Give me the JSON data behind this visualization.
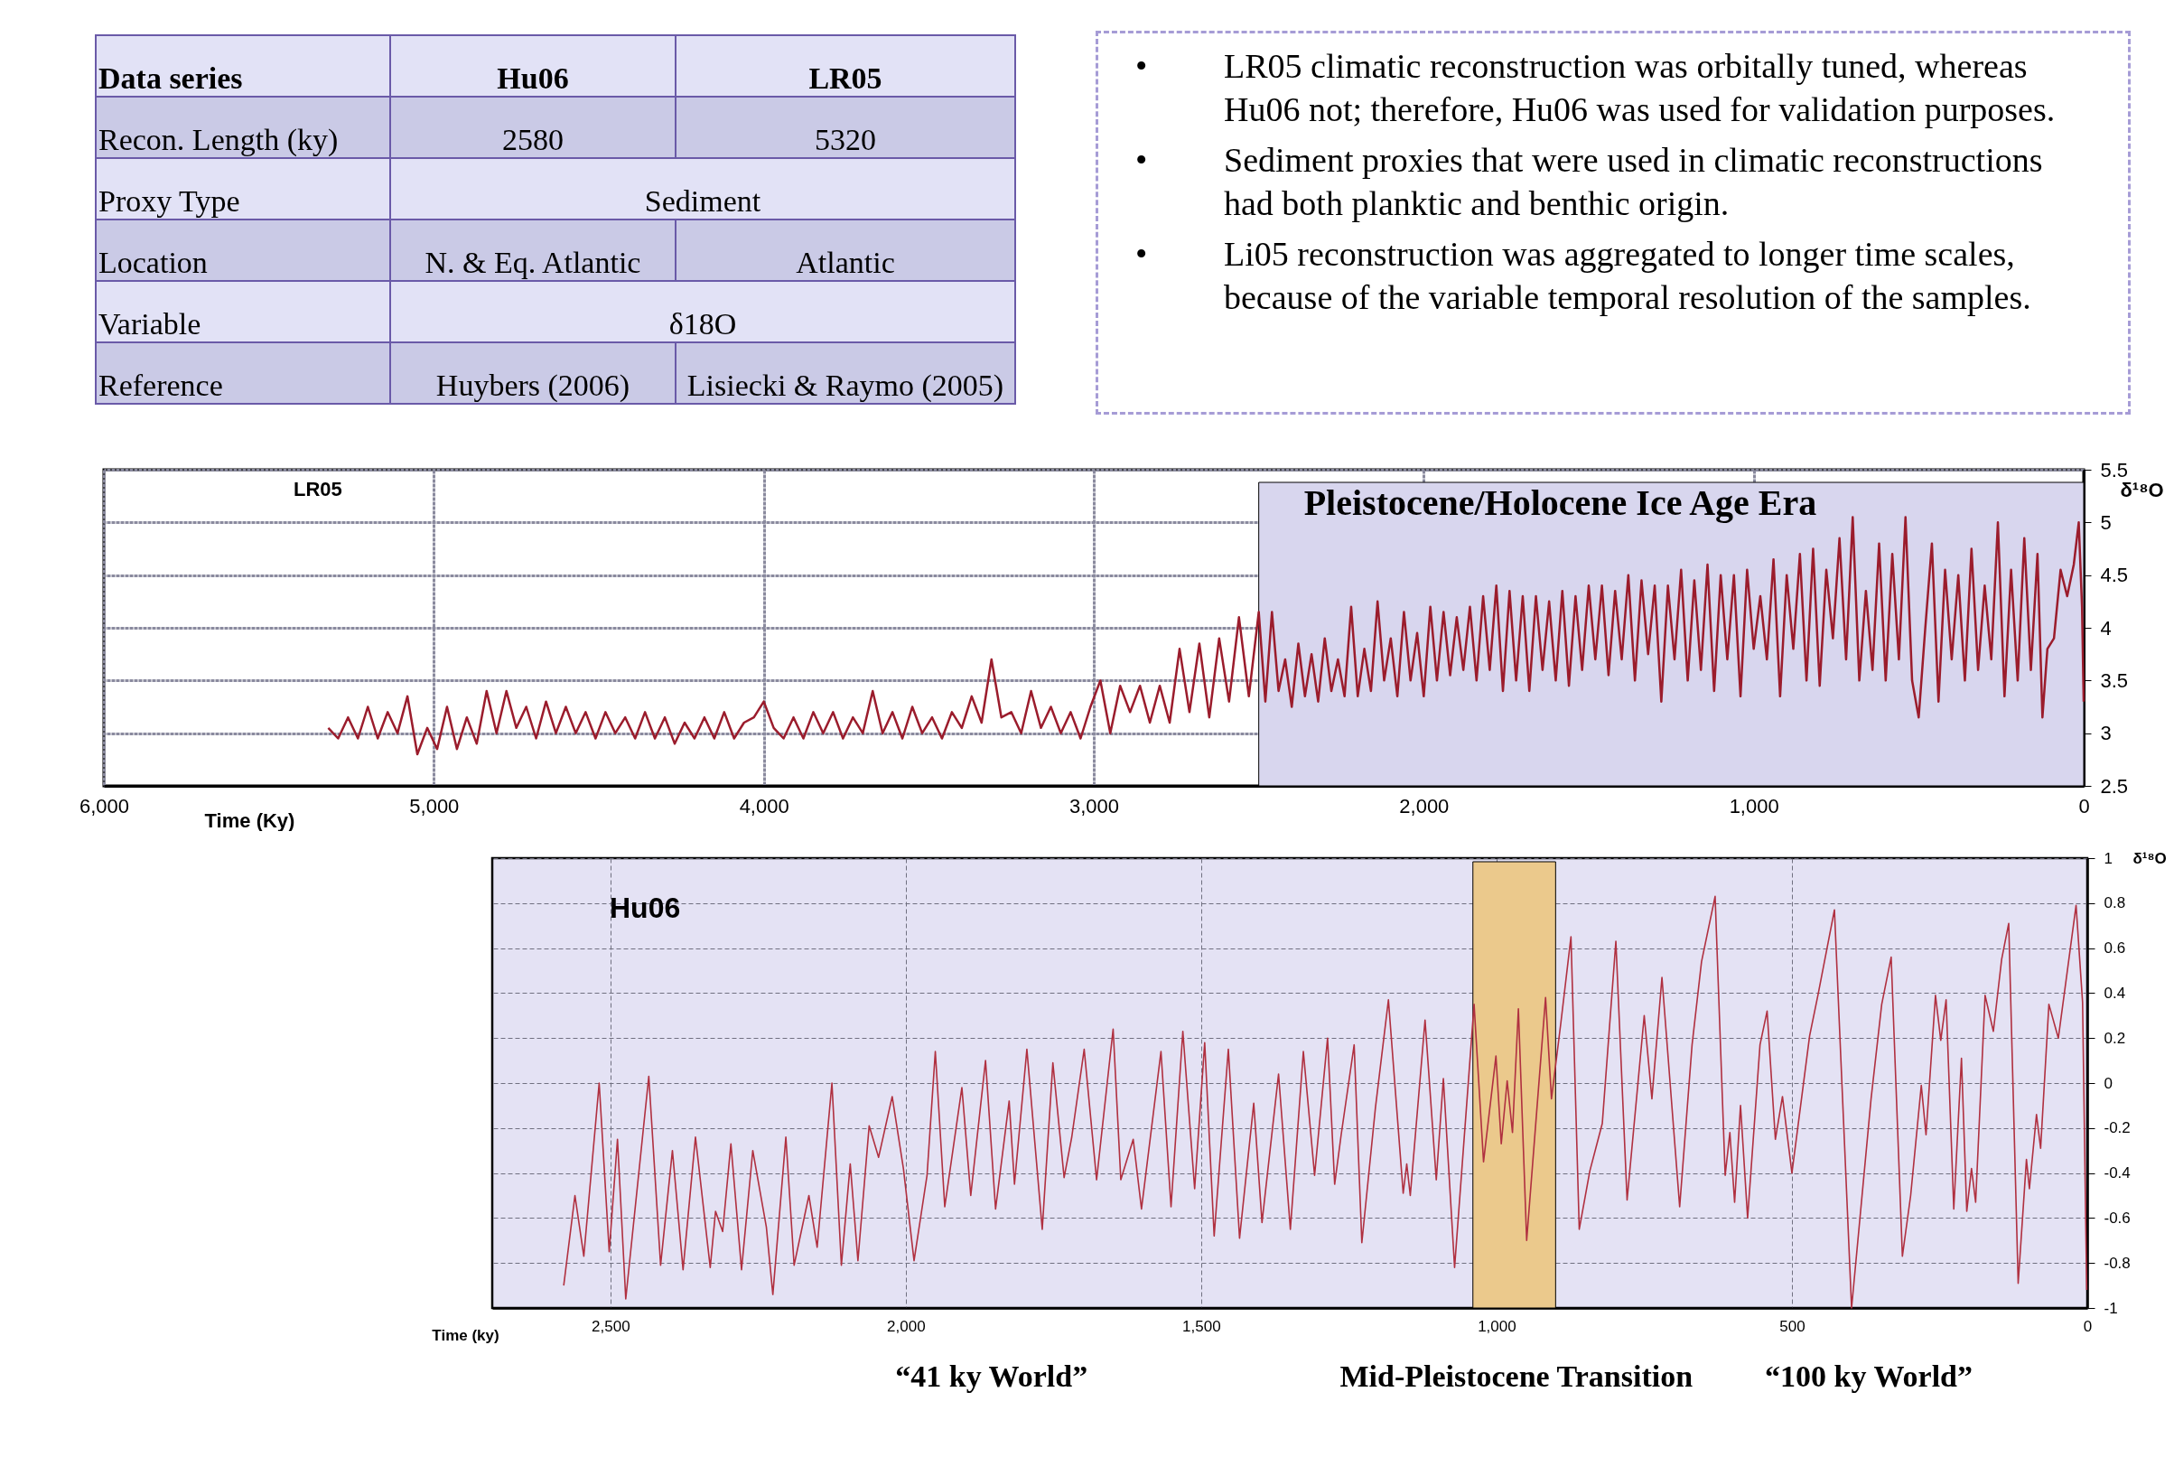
{
  "chart_data": [
    {
      "type": "other",
      "annotations": [
        "Data series",
        "Hu06",
        "LR05",
        "Recon. Length (ky)",
        "2580",
        "5320",
        "Proxy Type",
        "Sediment",
        "Location",
        "N. & Eq. Atlantic",
        "Atlantic",
        "Variable",
        "δ18O",
        "Reference",
        "Huybers (2006)",
        "Lisiecki & Raymo (2005)",
        "• LR05 climatic reconstruction was orbitally tuned, whereas Hu06 not; therefore, Hu06 was used for validation purposes.",
        "• Sediment proxies that were used in climatic reconstructions had both planktic and benthic origin.",
        "• Li05 reconstruction was aggregated to longer time scales, because of the variable temporal resolution of the samples."
      ]
    },
    {
      "type": "line",
      "title": "LR05",
      "xlabel": "Time (Ky)",
      "ylabel": "δ¹⁸O",
      "grid": true,
      "xlim": [
        6000,
        0
      ],
      "ylim": [
        2.5,
        5.5
      ],
      "xticks": [
        {
          "value": 6000,
          "label": "6,000"
        },
        {
          "value": 5000,
          "label": "5,000"
        },
        {
          "value": 4000,
          "label": "4,000"
        },
        {
          "value": 3000,
          "label": "3,000"
        },
        {
          "value": 2000,
          "label": "2,000"
        },
        {
          "value": 1000,
          "label": "1,000"
        },
        {
          "value": 0,
          "label": "0"
        }
      ],
      "yticks": [
        2.5,
        3,
        3.5,
        4,
        4.5,
        5,
        5.5
      ],
      "bands": [
        {
          "axis": "x",
          "from": 2500,
          "to": 0,
          "label": "Pleistocene/Holocene Ice Age Era",
          "color": "#d8d6ee"
        }
      ],
      "series": [
        {
          "color": "#9b1c2c",
          "x": [
            5320,
            5290,
            5260,
            5230,
            5200,
            5170,
            5140,
            5110,
            5080,
            5050,
            5020,
            4990,
            4960,
            4930,
            4900,
            4870,
            4840,
            4810,
            4780,
            4750,
            4720,
            4690,
            4660,
            4630,
            4600,
            4570,
            4540,
            4510,
            4480,
            4450,
            4420,
            4390,
            4360,
            4330,
            4300,
            4270,
            4240,
            4210,
            4180,
            4150,
            4120,
            4090,
            4060,
            4030,
            4000,
            3970,
            3940,
            3910,
            3880,
            3850,
            3820,
            3790,
            3760,
            3730,
            3700,
            3670,
            3640,
            3610,
            3580,
            3550,
            3520,
            3490,
            3460,
            3430,
            3400,
            3370,
            3340,
            3310,
            3280,
            3250,
            3220,
            3190,
            3160,
            3130,
            3100,
            3070,
            3040,
            3010,
            2980,
            2950,
            2920,
            2890,
            2860,
            2830,
            2800,
            2770,
            2740,
            2710,
            2680,
            2650,
            2620,
            2590,
            2560,
            2530,
            2500,
            2480,
            2460,
            2440,
            2420,
            2400,
            2380,
            2360,
            2340,
            2320,
            2300,
            2280,
            2260,
            2240,
            2220,
            2200,
            2180,
            2160,
            2140,
            2120,
            2100,
            2080,
            2060,
            2040,
            2020,
            2000,
            1980,
            1960,
            1940,
            1920,
            1900,
            1880,
            1860,
            1840,
            1820,
            1800,
            1780,
            1760,
            1740,
            1720,
            1700,
            1680,
            1660,
            1640,
            1620,
            1600,
            1580,
            1560,
            1540,
            1520,
            1500,
            1480,
            1460,
            1440,
            1420,
            1400,
            1380,
            1360,
            1340,
            1320,
            1300,
            1280,
            1260,
            1240,
            1220,
            1200,
            1180,
            1160,
            1140,
            1120,
            1100,
            1080,
            1060,
            1040,
            1020,
            1000,
            980,
            960,
            940,
            920,
            900,
            880,
            860,
            840,
            820,
            800,
            780,
            760,
            740,
            720,
            700,
            680,
            660,
            640,
            620,
            600,
            580,
            560,
            540,
            520,
            500,
            480,
            460,
            440,
            420,
            400,
            380,
            360,
            340,
            320,
            300,
            280,
            260,
            240,
            220,
            200,
            180,
            160,
            140,
            125,
            110,
            90,
            70,
            50,
            30,
            15,
            5,
            0
          ],
          "values": [
            3.05,
            2.95,
            3.15,
            2.95,
            3.25,
            2.95,
            3.2,
            3.0,
            3.35,
            2.8,
            3.05,
            2.85,
            3.25,
            2.85,
            3.15,
            2.9,
            3.4,
            3.0,
            3.4,
            3.05,
            3.25,
            2.95,
            3.3,
            3.0,
            3.25,
            3.0,
            3.2,
            2.95,
            3.2,
            3.0,
            3.15,
            2.95,
            3.2,
            2.95,
            3.15,
            2.9,
            3.1,
            2.95,
            3.15,
            2.95,
            3.2,
            2.95,
            3.1,
            3.15,
            3.3,
            3.05,
            2.95,
            3.15,
            2.95,
            3.2,
            3.0,
            3.2,
            2.95,
            3.15,
            3.0,
            3.4,
            3.0,
            3.2,
            2.95,
            3.25,
            3.0,
            3.15,
            2.95,
            3.2,
            3.05,
            3.35,
            3.1,
            3.7,
            3.15,
            3.2,
            3.0,
            3.4,
            3.05,
            3.25,
            3.0,
            3.2,
            2.95,
            3.25,
            3.5,
            3.0,
            3.45,
            3.2,
            3.45,
            3.1,
            3.45,
            3.1,
            3.8,
            3.2,
            3.85,
            3.15,
            3.9,
            3.3,
            4.1,
            3.35,
            4.15,
            3.3,
            4.15,
            3.4,
            3.7,
            3.25,
            3.85,
            3.35,
            3.75,
            3.3,
            3.9,
            3.4,
            3.7,
            3.35,
            4.2,
            3.35,
            3.8,
            3.4,
            4.25,
            3.5,
            3.9,
            3.35,
            4.15,
            3.5,
            3.95,
            3.35,
            4.2,
            3.5,
            4.15,
            3.55,
            4.1,
            3.6,
            4.2,
            3.5,
            4.3,
            3.6,
            4.4,
            3.4,
            4.35,
            3.5,
            4.3,
            3.4,
            4.3,
            3.6,
            4.25,
            3.5,
            4.35,
            3.45,
            4.3,
            3.6,
            4.4,
            3.7,
            4.4,
            3.55,
            4.35,
            3.7,
            4.5,
            3.5,
            4.45,
            3.75,
            4.4,
            3.3,
            4.4,
            3.7,
            4.55,
            3.5,
            4.45,
            3.6,
            4.6,
            3.4,
            4.5,
            3.7,
            4.5,
            3.35,
            4.55,
            3.8,
            4.3,
            3.7,
            4.65,
            3.35,
            4.5,
            3.8,
            4.7,
            3.5,
            4.75,
            3.45,
            4.55,
            3.9,
            4.85,
            3.7,
            5.05,
            3.5,
            4.35,
            3.6,
            4.8,
            3.5,
            4.7,
            3.7,
            5.05,
            3.5,
            3.15,
            4.0,
            4.8,
            3.3,
            4.55,
            3.7,
            4.5,
            3.5,
            4.75,
            3.6,
            4.4,
            3.7,
            5.0,
            3.35,
            4.55,
            3.5,
            4.85,
            3.6,
            4.7,
            3.15,
            3.8,
            3.9,
            4.55,
            4.3,
            4.6,
            5.0,
            4.2,
            3.3
          ]
        }
      ]
    },
    {
      "type": "line",
      "title": "Hu06",
      "xlabel": "Time (ky)",
      "ylabel": "δ¹⁸O",
      "grid": true,
      "xlim": [
        2700,
        0
      ],
      "ylim": [
        -1,
        1
      ],
      "xticks": [
        {
          "value": 2500,
          "label": "2,500"
        },
        {
          "value": 2000,
          "label": "2,000"
        },
        {
          "value": 1500,
          "label": "1,500"
        },
        {
          "value": 1000,
          "label": "1,000"
        },
        {
          "value": 500,
          "label": "500"
        },
        {
          "value": 0,
          "label": "0"
        }
      ],
      "yticks": [
        -1,
        -0.8,
        -0.6,
        -0.4,
        -0.2,
        0,
        0.2,
        0.4,
        0.6,
        0.8,
        1
      ],
      "bands": [
        {
          "axis": "x",
          "from": 1040,
          "to": 900,
          "color": "#ebc98c"
        }
      ],
      "annotations": [
        "“41 ky World”",
        "Mid-Pleistocene Transition",
        "“100 ky World”"
      ],
      "series": [
        {
          "color": "#b03040",
          "x": [
            2579,
            2560,
            2545,
            2519,
            2502,
            2488,
            2474,
            2435,
            2415,
            2395,
            2377,
            2356,
            2331,
            2322,
            2310,
            2296,
            2278,
            2259,
            2236,
            2225,
            2203,
            2189,
            2164,
            2150,
            2125,
            2109,
            2094,
            2081,
            2062,
            2046,
            2023,
            2004,
            1986,
            1964,
            1950,
            1934,
            1905,
            1890,
            1865,
            1848,
            1825,
            1816,
            1795,
            1769,
            1751,
            1732,
            1719,
            1698,
            1677,
            1649,
            1636,
            1615,
            1601,
            1568,
            1551,
            1531,
            1511,
            1494,
            1478,
            1454,
            1435,
            1411,
            1397,
            1369,
            1349,
            1327,
            1308,
            1286,
            1274,
            1263,
            1241,
            1228,
            1205,
            1183,
            1158,
            1152,
            1146,
            1121,
            1102,
            1090,
            1071,
            1038,
            1022,
            1001,
            992,
            982,
            973,
            963,
            949,
            917,
            907,
            891,
            874,
            860,
            842,
            821,
            798,
            779,
            750,
            737,
            720,
            690,
            669,
            653,
            630,
            613,
            605,
            597,
            587,
            575,
            554,
            542,
            528,
            516,
            500,
            470,
            456,
            428,
            399,
            366,
            348,
            332,
            313,
            299,
            281,
            273,
            257,
            248,
            239,
            226,
            213,
            204,
            196,
            189,
            173,
            159,
            145,
            133,
            117,
            103,
            98,
            86,
            79,
            65,
            49,
            19,
            8,
            1
          ],
          "values": [
            -0.9,
            -0.5,
            -0.77,
            0.0,
            -0.75,
            -0.25,
            -0.96,
            0.03,
            -0.81,
            -0.3,
            -0.83,
            -0.24,
            -0.82,
            -0.57,
            -0.66,
            -0.27,
            -0.83,
            -0.3,
            -0.64,
            -0.94,
            -0.24,
            -0.81,
            -0.5,
            -0.73,
            0.0,
            -0.81,
            -0.36,
            -0.79,
            -0.19,
            -0.33,
            -0.06,
            -0.38,
            -0.79,
            -0.41,
            0.14,
            -0.55,
            -0.02,
            -0.5,
            0.1,
            -0.56,
            -0.08,
            -0.45,
            0.15,
            -0.65,
            0.09,
            -0.42,
            -0.24,
            0.15,
            -0.43,
            0.24,
            -0.43,
            -0.25,
            -0.56,
            0.14,
            -0.55,
            0.23,
            -0.47,
            0.18,
            -0.68,
            0.15,
            -0.69,
            -0.09,
            -0.62,
            0.04,
            -0.65,
            0.14,
            -0.41,
            0.2,
            -0.45,
            -0.23,
            0.17,
            -0.71,
            -0.11,
            0.37,
            -0.49,
            -0.36,
            -0.5,
            0.28,
            -0.43,
            0.02,
            -0.82,
            0.35,
            -0.35,
            0.12,
            -0.27,
            0.01,
            -0.22,
            0.33,
            -0.7,
            0.38,
            -0.07,
            0.27,
            0.65,
            -0.65,
            -0.39,
            -0.18,
            0.63,
            -0.52,
            0.3,
            -0.07,
            0.47,
            -0.55,
            0.17,
            0.54,
            0.83,
            -0.41,
            -0.22,
            -0.53,
            -0.1,
            -0.6,
            0.17,
            0.32,
            -0.25,
            -0.06,
            -0.4,
            0.21,
            0.39,
            0.77,
            -1.0,
            -0.07,
            0.35,
            0.56,
            -0.77,
            -0.5,
            -0.01,
            -0.23,
            0.39,
            0.19,
            0.37,
            -0.56,
            0.11,
            -0.57,
            -0.38,
            -0.53,
            0.39,
            0.23,
            0.55,
            0.71,
            -0.89,
            -0.34,
            -0.47,
            -0.14,
            -0.29,
            0.35,
            0.2,
            0.79,
            0.36,
            -0.92
          ]
        }
      ]
    }
  ]
}
